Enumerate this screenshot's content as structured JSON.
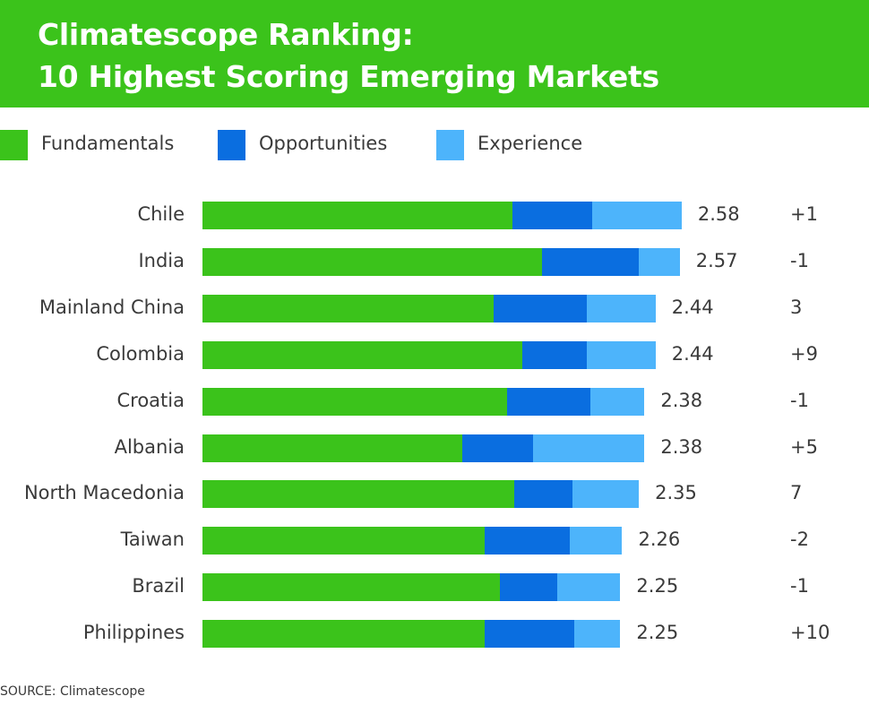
{
  "header": {
    "title_line1": "Climatescope Ranking:",
    "title_line2": "10 Highest Scoring Emerging Markets",
    "background": "#3bc31b"
  },
  "source": "SOURCE: Climatescope",
  "chart_data": {
    "type": "bar",
    "orientation": "horizontal",
    "stacked": true,
    "title": "Climatescope Ranking: 10 Highest Scoring Emerging Markets",
    "legend_placement": "top-left",
    "categories": [
      "Chile",
      "India",
      "Mainland China",
      "Colombia",
      "Croatia",
      "Albania",
      "North Macedonia",
      "Taiwan",
      "Brazil",
      "Philippines"
    ],
    "series": [
      {
        "name": "Fundamentals",
        "color": "#3bc31b",
        "values": [
          1.67,
          1.83,
          1.57,
          1.72,
          1.64,
          1.4,
          1.68,
          1.52,
          1.6,
          1.52
        ]
      },
      {
        "name": "Opportunities",
        "color": "#0a6ee0",
        "values": [
          0.43,
          0.52,
          0.5,
          0.35,
          0.45,
          0.38,
          0.31,
          0.46,
          0.31,
          0.48
        ]
      },
      {
        "name": "Experience",
        "color": "#4db4fb",
        "values": [
          0.48,
          0.22,
          0.37,
          0.37,
          0.29,
          0.6,
          0.36,
          0.28,
          0.34,
          0.25
        ]
      }
    ],
    "totals": [
      "2.58",
      "2.57",
      "2.44",
      "2.44",
      "2.38",
      "2.38",
      "2.35",
      "2.26",
      "2.25",
      "2.25"
    ],
    "rank_changes": [
      "+1",
      "-1",
      "3",
      "+9",
      "-1",
      "+5",
      "7",
      "-2",
      "-1",
      "+10"
    ],
    "xlim": [
      0,
      2.58
    ],
    "grid": false
  }
}
